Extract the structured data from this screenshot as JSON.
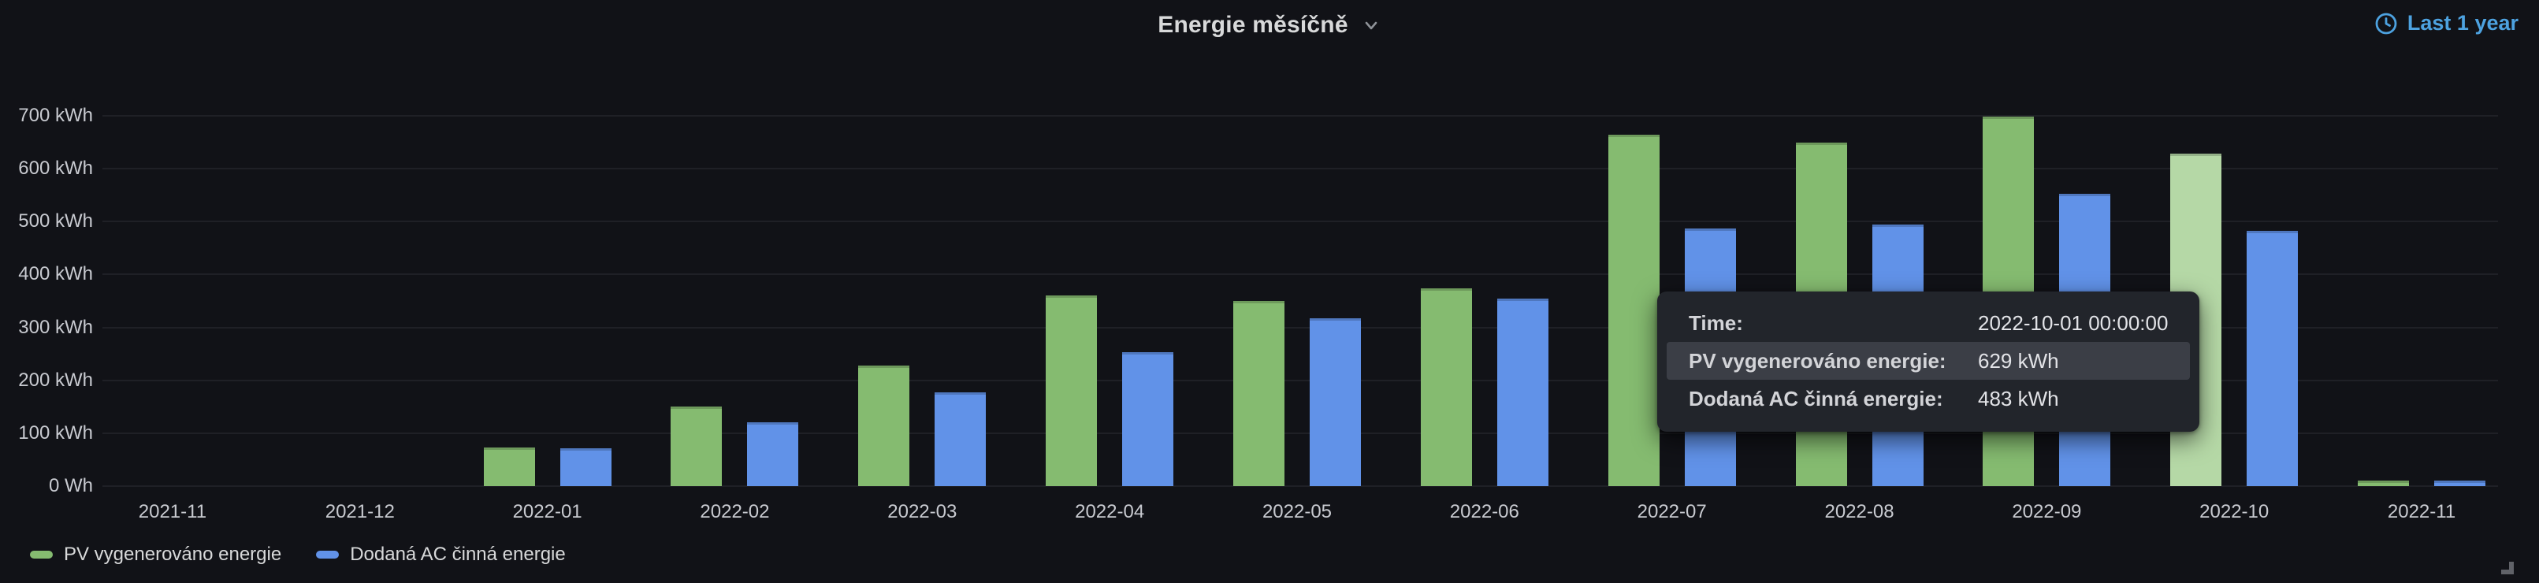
{
  "panel": {
    "title": "Energie měsíčně",
    "time_range_label": "Last 1 year",
    "accent_blue": "#4da2e0"
  },
  "chart_data": {
    "type": "bar",
    "title": "Energie měsíčně",
    "categories": [
      "2021-11",
      "2021-12",
      "2022-01",
      "2022-02",
      "2022-03",
      "2022-04",
      "2022-05",
      "2022-06",
      "2022-07",
      "2022-08",
      "2022-09",
      "2022-10",
      "2022-11"
    ],
    "series": [
      {
        "name": "PV vygenerováno energie",
        "color": "#85bb70",
        "values": [
          0,
          0,
          73,
          151,
          228,
          360,
          350,
          374,
          664,
          649,
          698,
          629,
          10
        ]
      },
      {
        "name": "Dodaná AC činná energie",
        "color": "#6192e8",
        "values": [
          0,
          0,
          72,
          120,
          177,
          253,
          317,
          354,
          487,
          495,
          553,
          483,
          10
        ]
      }
    ],
    "unit": "kWh",
    "y_ticks": [
      "0 Wh",
      "100 kWh",
      "200 kWh",
      "300 kWh",
      "400 kWh",
      "500 kWh",
      "600 kWh",
      "700 kWh"
    ],
    "y_tick_values": [
      0,
      100,
      200,
      300,
      400,
      500,
      600,
      700
    ],
    "ylim": [
      0,
      725
    ],
    "grid": true,
    "legend_position": "bottom-left",
    "highlight": {
      "category": "2022-10",
      "series": "PV vygenerováno energie",
      "color": "#b5d8a6"
    }
  },
  "tooltip": {
    "rows": [
      {
        "label": "Time:",
        "value": "2022-10-01 00:00:00",
        "highlight": false
      },
      {
        "label": "PV vygenerováno energie:",
        "value": "629 kWh",
        "highlight": true
      },
      {
        "label": "Dodaná AC činná energie:",
        "value": "483 kWh",
        "highlight": false
      }
    ]
  }
}
